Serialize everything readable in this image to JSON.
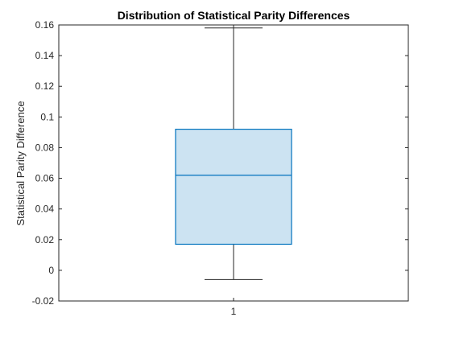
{
  "chart_data": {
    "type": "box",
    "title": "Distribution of Statistical Parity Differences",
    "xlabel": "",
    "ylabel": "Statistical Parity Difference",
    "categories": [
      "1"
    ],
    "ylim": [
      -0.02,
      0.16
    ],
    "yticks": [
      "-0.02",
      "0",
      "0.02",
      "0.04",
      "0.06",
      "0.08",
      "0.1",
      "0.12",
      "0.14",
      "0.16"
    ],
    "grid": false,
    "boxes": [
      {
        "category": "1",
        "whisker_low": -0.006,
        "q1": 0.017,
        "median": 0.062,
        "q3": 0.092,
        "whisker_high": 0.158
      }
    ],
    "colors": {
      "box_edge": "#0072BD",
      "box_fill": "#CCE3F2",
      "whisker": "#262626",
      "axis": "#262626"
    }
  }
}
